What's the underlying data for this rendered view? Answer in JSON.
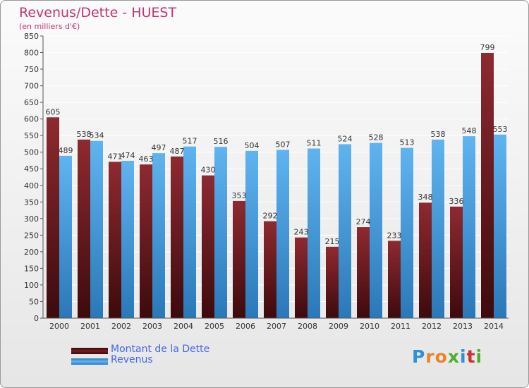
{
  "chart_data": {
    "type": "bar",
    "title": "Revenus/Dette - HUEST",
    "subtitle": "(en milliers d'€)",
    "categories": [
      "2000",
      "2001",
      "2002",
      "2003",
      "2004",
      "2005",
      "2006",
      "2007",
      "2008",
      "2009",
      "2010",
      "2011",
      "2012",
      "2013",
      "2014"
    ],
    "series": [
      {
        "name": "Montant de la Dette",
        "color": "#7a1c22",
        "values": [
          605,
          538,
          471,
          463,
          487,
          430,
          353,
          292,
          243,
          215,
          274,
          233,
          348,
          336,
          799
        ]
      },
      {
        "name": "Revenus",
        "color": "#4fa6e6",
        "values": [
          489,
          534,
          474,
          497,
          517,
          516,
          504,
          507,
          511,
          524,
          528,
          513,
          538,
          548,
          553
        ]
      }
    ],
    "ylim": [
      0,
      850
    ],
    "ytick_step": 50,
    "grid": true,
    "legend_position": "bottom-left"
  },
  "logo": {
    "text": "Proxiti",
    "letter_colors": [
      "#2f8fd8",
      "#e8842a",
      "#e8842a",
      "#4caf2e",
      "#2f8fd8",
      "#d12f2f",
      "#4caf2e"
    ]
  }
}
